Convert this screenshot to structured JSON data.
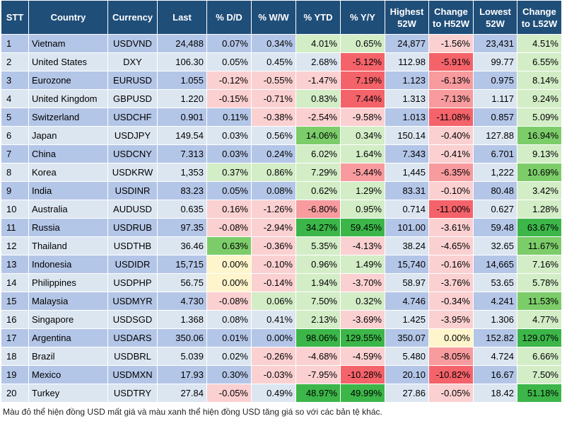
{
  "headers": [
    "STT",
    "Country",
    "Currency",
    "Last",
    "% D/D",
    "% W/W",
    "% YTD",
    "% Y/Y",
    "Highest 52W",
    "Change to H52W",
    "Lowest 52W",
    "Change to L52W"
  ],
  "rows": [
    [
      "1",
      "Vietnam",
      "USDVND",
      "24,488",
      "0.07%",
      "0.34%",
      "4.01%",
      "0.65%",
      "24,877",
      "-1.56%",
      "23,431",
      "4.51%"
    ],
    [
      "2",
      "United States",
      "DXY",
      "106.30",
      "0.05%",
      "0.45%",
      "2.68%",
      "-5.12%",
      "112.98",
      "-5.91%",
      "99.77",
      "6.55%"
    ],
    [
      "3",
      "Eurozone",
      "EURUSD",
      "1.055",
      "-0.12%",
      "-0.55%",
      "-1.47%",
      "7.19%",
      "1.123",
      "-6.13%",
      "0.975",
      "8.14%"
    ],
    [
      "4",
      "United Kingdom",
      "GBPUSD",
      "1.220",
      "-0.15%",
      "-0.71%",
      "0.83%",
      "7.44%",
      "1.313",
      "-7.13%",
      "1.117",
      "9.24%"
    ],
    [
      "5",
      "Switzerland",
      "USDCHF",
      "0.901",
      "0.11%",
      "-0.38%",
      "-2.54%",
      "-9.58%",
      "1.013",
      "-11.08%",
      "0.857",
      "5.09%"
    ],
    [
      "6",
      "Japan",
      "USDJPY",
      "149.54",
      "0.03%",
      "0.56%",
      "14.06%",
      "0.34%",
      "150.14",
      "-0.40%",
      "127.88",
      "16.94%"
    ],
    [
      "7",
      "China",
      "USDCNY",
      "7.313",
      "0.03%",
      "0.24%",
      "6.02%",
      "1.64%",
      "7.343",
      "-0.41%",
      "6.701",
      "9.13%"
    ],
    [
      "8",
      "Korea",
      "USDKRW",
      "1,353",
      "0.37%",
      "0.86%",
      "7.29%",
      "-5.44%",
      "1,445",
      "-6.35%",
      "1,222",
      "10.69%"
    ],
    [
      "9",
      "India",
      "USDINR",
      "83.23",
      "0.05%",
      "0.08%",
      "0.62%",
      "1.29%",
      "83.31",
      "-0.10%",
      "80.48",
      "3.42%"
    ],
    [
      "10",
      "Australia",
      "AUDUSD",
      "0.635",
      "0.16%",
      "-1.26%",
      "-6.80%",
      "0.95%",
      "0.714",
      "-11.00%",
      "0.627",
      "1.28%"
    ],
    [
      "11",
      "Russia",
      "USDRUB",
      "97.35",
      "-0.08%",
      "-2.94%",
      "34.27%",
      "59.45%",
      "101.00",
      "-3.61%",
      "59.48",
      "63.67%"
    ],
    [
      "12",
      "Thailand",
      "USDTHB",
      "36.46",
      "0.63%",
      "-0.36%",
      "5.35%",
      "-4.13%",
      "38.24",
      "-4.65%",
      "32.65",
      "11.67%"
    ],
    [
      "13",
      "Indonesia",
      "USDIDR",
      "15,715",
      "0.00%",
      "-0.10%",
      "0.96%",
      "1.49%",
      "15,740",
      "-0.16%",
      "14,665",
      "7.16%"
    ],
    [
      "14",
      "Philippines",
      "USDPHP",
      "56.75",
      "0.00%",
      "-0.14%",
      "1.94%",
      "-3.70%",
      "58.97",
      "-3.76%",
      "53.65",
      "5.78%"
    ],
    [
      "15",
      "Malaysia",
      "USDMYR",
      "4.730",
      "-0.08%",
      "0.06%",
      "7.50%",
      "0.32%",
      "4.746",
      "-0.34%",
      "4.241",
      "11.53%"
    ],
    [
      "16",
      "Singapore",
      "USDSGD",
      "1.368",
      "0.08%",
      "0.41%",
      "2.13%",
      "-3.69%",
      "1.425",
      "-3.95%",
      "1.306",
      "4.77%"
    ],
    [
      "17",
      "Argentina",
      "USDARS",
      "350.06",
      "0.01%",
      "0.00%",
      "98.06%",
      "129.55%",
      "350.07",
      "0.00%",
      "152.82",
      "129.07%"
    ],
    [
      "18",
      "Brazil",
      "USDBRL",
      "5.039",
      "0.02%",
      "-0.26%",
      "-4.68%",
      "-4.59%",
      "5.480",
      "-8.05%",
      "4.724",
      "6.66%"
    ],
    [
      "19",
      "Mexico",
      "USDMXN",
      "17.93",
      "0.30%",
      "-0.03%",
      "-7.95%",
      "-10.28%",
      "20.10",
      "-10.82%",
      "16.67",
      "7.50%"
    ],
    [
      "20",
      "Turkey",
      "USDTRY",
      "27.84",
      "-0.05%",
      "0.49%",
      "48.97%",
      "49.99%",
      "27.86",
      "-0.05%",
      "18.42",
      "51.18%"
    ]
  ],
  "cell_colors": {
    "1": {
      "6": "pos-light",
      "7": "pos-light",
      "9": "neg-light",
      "11": "pos-light"
    },
    "2": {
      "7": "neg-strong",
      "9": "neg-strong",
      "11": "pos-light"
    },
    "3": {
      "4": "neg-light",
      "5": "neg-light",
      "6": "neg-light",
      "7": "neg-strong",
      "9": "neg-mid",
      "11": "pos-light"
    },
    "4": {
      "4": "neg-light",
      "5": "neg-light",
      "6": "pos-light",
      "7": "neg-strong",
      "9": "neg-mid",
      "11": "pos-light"
    },
    "5": {
      "5": "neg-light",
      "6": "neg-light",
      "7": "neg-light",
      "9": "neg-strong",
      "11": "pos-light"
    },
    "6": {
      "6": "pos-mid",
      "7": "pos-light",
      "9": "neg-light",
      "11": "pos-mid"
    },
    "7": {
      "6": "pos-light",
      "7": "pos-light",
      "9": "neg-light",
      "11": "pos-light"
    },
    "8": {
      "4": "pos-light",
      "5": "pos-light",
      "6": "pos-light",
      "7": "neg-mid",
      "9": "neg-mid",
      "11": "pos-mid"
    },
    "9": {
      "6": "pos-light",
      "7": "pos-light",
      "9": "neg-light",
      "11": "pos-light"
    },
    "10": {
      "4": "neg-light",
      "5": "neg-light",
      "6": "neg-mid",
      "7": "pos-light",
      "9": "neg-strong",
      "11": "pos-light"
    },
    "11": {
      "4": "neg-light",
      "5": "neg-light",
      "6": "pos-strong",
      "7": "pos-strong",
      "9": "neg-light",
      "11": "pos-strong"
    },
    "12": {
      "4": "pos-mid",
      "5": "neg-light",
      "6": "pos-light",
      "7": "neg-light",
      "9": "neg-light",
      "11": "pos-mid"
    },
    "13": {
      "4": "neutral",
      "5": "neg-light",
      "6": "pos-light",
      "7": "pos-light",
      "9": "neg-light",
      "11": "pos-light"
    },
    "14": {
      "4": "neutral",
      "5": "neg-light",
      "6": "pos-light",
      "7": "neg-light",
      "9": "neg-light",
      "11": "pos-light"
    },
    "15": {
      "4": "neg-light",
      "5": "pos-light",
      "6": "pos-light",
      "7": "pos-light",
      "9": "neg-light",
      "11": "pos-mid"
    },
    "16": {
      "6": "pos-light",
      "7": "neg-light",
      "9": "neg-light",
      "11": "pos-light"
    },
    "17": {
      "6": "pos-strong",
      "7": "pos-strong",
      "9": "neutral",
      "11": "pos-strong"
    },
    "18": {
      "5": "neg-light",
      "6": "neg-light",
      "7": "neg-light",
      "9": "neg-mid",
      "11": "pos-light"
    },
    "19": {
      "5": "neg-light",
      "6": "neg-light",
      "7": "neg-strong",
      "9": "neg-strong",
      "11": "pos-light"
    },
    "20": {
      "4": "neg-light",
      "6": "pos-strong",
      "7": "pos-strong",
      "9": "neg-light",
      "11": "pos-strong"
    }
  },
  "note": "Màu đỏ thể hiện đồng USD mất giá và màu xanh thể hiện đồng USD tăng giá so với các bản tệ khác."
}
